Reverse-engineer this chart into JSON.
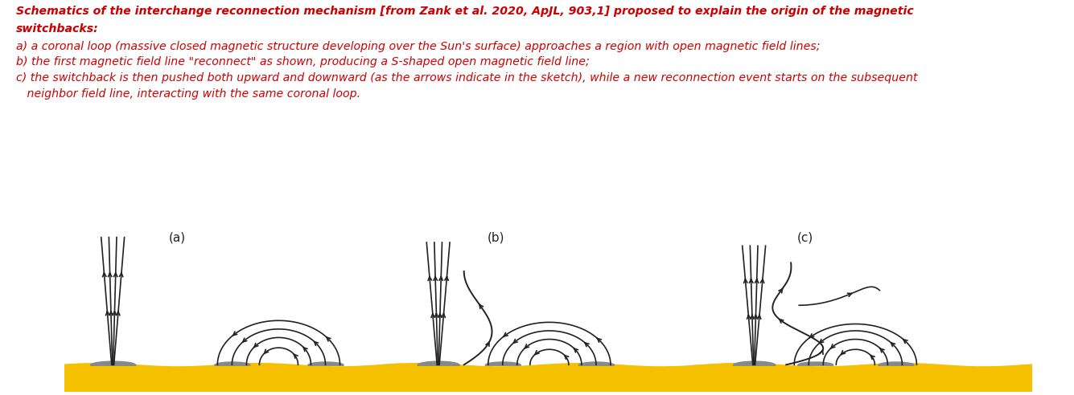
{
  "title_line1": "Schematics of the interchange reconnection mechanism [from Zank et al. 2020, ApJL, 903,1] proposed to explain the origin of the magnetic",
  "title_line2": "switchbacks:",
  "line_a": "a) a coronal loop (massive closed magnetic structure developing over the Sun's surface) approaches a region with open magnetic field lines;",
  "line_b": "b) the first magnetic field line \"reconnect\" as shown, producing a S-shaped open magnetic field line;",
  "line_c": "c) the switchback is then pushed both upward and downward (as the arrows indicate in the sketch), while a new reconnection event starts on the subsequent",
  "line_d": "   neighbor field line, interacting with the same coronal loop.",
  "text_color": "#CC0000",
  "bg_color": "#FFFFFF",
  "label_a": "(a)",
  "label_b": "(b)",
  "label_c": "(c)",
  "sun_color": "#F5C000",
  "sun_surface_color": "#888888",
  "line_color": "#222222",
  "font_size_text": 10.2,
  "font_size_label": 11
}
